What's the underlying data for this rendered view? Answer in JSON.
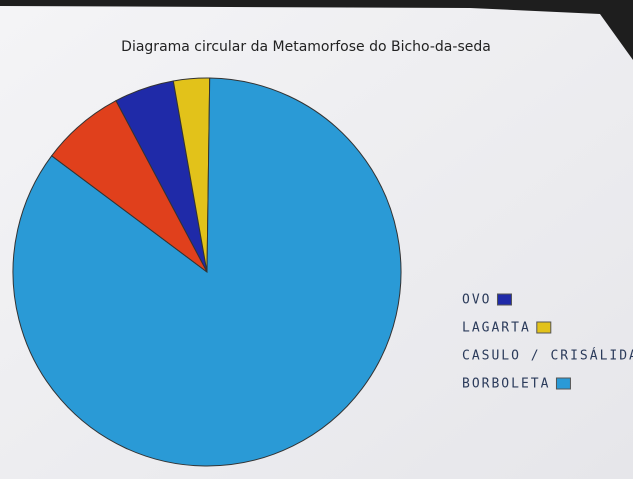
{
  "chart_data": {
    "type": "pie",
    "title": "Diagrama circular da Metamorfose do Bicho-da-seda",
    "categories": [
      "OVO",
      "LAGARTA",
      "CASULO / CRISÁLIDA",
      "BORBOLETA"
    ],
    "values": [
      5,
      3,
      7,
      85
    ],
    "colors": [
      "#1f2aa8",
      "#e2c21a",
      "#e0401c",
      "#2a9ad6"
    ]
  }
}
